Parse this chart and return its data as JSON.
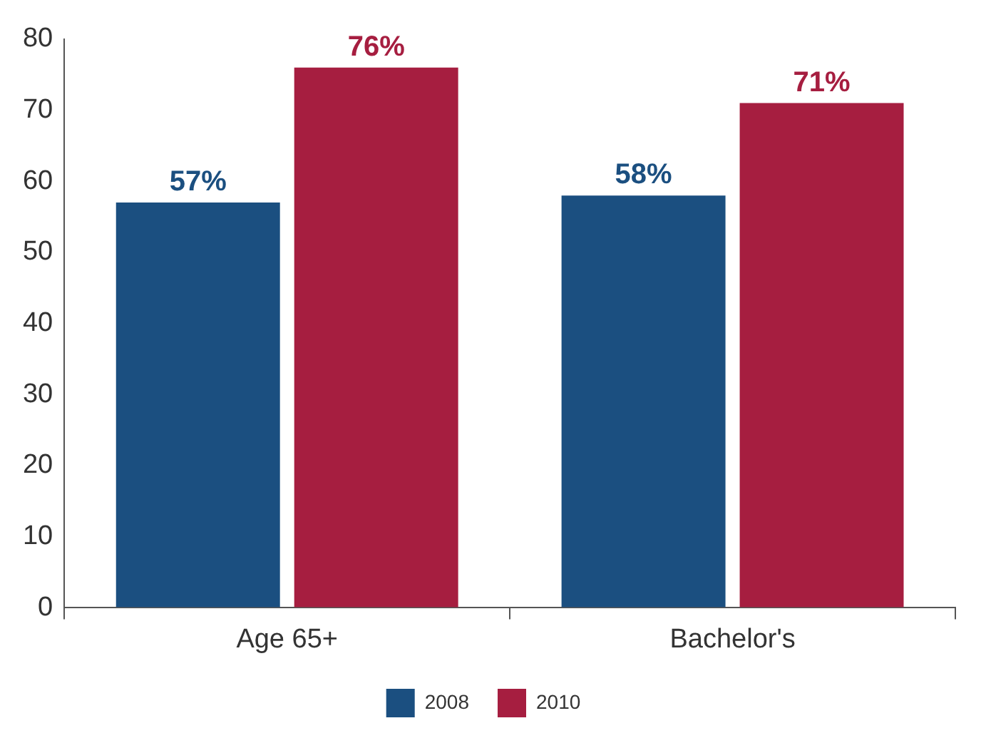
{
  "chart_data": {
    "type": "bar",
    "categories": [
      "Age 65+",
      "Bachelor's"
    ],
    "series": [
      {
        "name": "2008",
        "color": "#1b4f80",
        "values": [
          57,
          58
        ],
        "value_labels": [
          "57%",
          "58%"
        ]
      },
      {
        "name": "2010",
        "color": "#a61e40",
        "values": [
          76,
          71
        ],
        "value_labels": [
          "76%",
          "71%"
        ]
      }
    ],
    "ylim": [
      0,
      80
    ],
    "yticks": [
      0,
      10,
      20,
      30,
      40,
      50,
      60,
      70,
      80
    ],
    "grid": false,
    "legend": "bottom"
  }
}
